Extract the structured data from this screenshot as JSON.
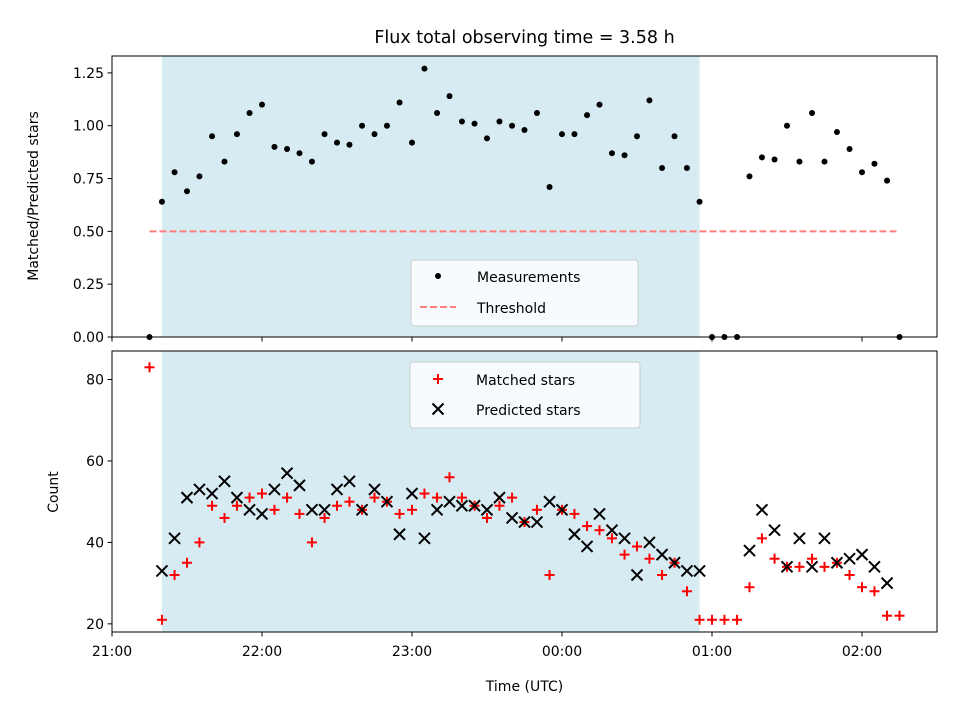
{
  "chart_data": {
    "type": "scatter",
    "title": "Flux total observing time = 3.58 h",
    "xlabel": "Time (UTC)",
    "x_ticks": [
      {
        "h": 0,
        "label": "21:00"
      },
      {
        "h": 1,
        "label": "22:00"
      },
      {
        "h": 2,
        "label": "23:00"
      },
      {
        "h": 3,
        "label": "00:00"
      },
      {
        "h": 4,
        "label": "01:00"
      },
      {
        "h": 5,
        "label": "02:00"
      }
    ],
    "xlim_hours_after_21": [
      0,
      5.5
    ],
    "shaded_span_hours_after_21": [
      0.333,
      3.917
    ],
    "colors": {
      "shade": "#add8e6",
      "measurement": "#000000",
      "threshold": "#ff7f7f",
      "matched": "#ff0000",
      "predicted": "#000000"
    },
    "top_panel": {
      "ylabel": "Matched/Predicted stars",
      "ylim": [
        0,
        1.33
      ],
      "y_ticks": [
        0.0,
        0.25,
        0.5,
        0.75,
        1.0,
        1.25
      ],
      "y_tick_labels": [
        "0.00",
        "0.25",
        "0.50",
        "0.75",
        "1.00",
        "1.25"
      ],
      "threshold": {
        "name": "Threshold",
        "value": 0.5,
        "x_range": [
          0.25,
          5.25
        ]
      },
      "legend": [
        "Measurements",
        "Threshold"
      ],
      "legend_position": "lower-center",
      "measurements": {
        "name": "Measurements",
        "x": [
          0.25,
          0.333,
          0.417,
          0.5,
          0.583,
          0.667,
          0.75,
          0.833,
          0.917,
          1.0,
          1.083,
          1.167,
          1.25,
          1.333,
          1.417,
          1.5,
          1.583,
          1.667,
          1.75,
          1.833,
          1.917,
          2.0,
          2.083,
          2.167,
          2.25,
          2.333,
          2.417,
          2.5,
          2.583,
          2.667,
          2.75,
          2.833,
          2.917,
          3.0,
          3.083,
          3.167,
          3.25,
          3.333,
          3.417,
          3.5,
          3.583,
          3.667,
          3.75,
          3.833,
          3.917,
          4.0,
          4.083,
          4.167,
          4.25,
          4.333,
          4.417,
          4.5,
          4.583,
          4.667,
          4.75,
          4.833,
          4.917,
          5.0,
          5.083,
          5.167,
          5.25
        ],
        "y": [
          0.0,
          0.64,
          0.78,
          0.69,
          0.76,
          0.95,
          0.83,
          0.96,
          1.06,
          1.1,
          0.9,
          0.89,
          0.87,
          0.83,
          0.96,
          0.92,
          0.91,
          1.0,
          0.96,
          1.0,
          1.11,
          0.92,
          1.27,
          1.06,
          1.14,
          1.02,
          1.01,
          0.94,
          1.02,
          1.0,
          0.98,
          1.06,
          0.71,
          0.96,
          0.96,
          1.05,
          1.1,
          0.87,
          0.86,
          0.95,
          1.12,
          0.8,
          0.95,
          0.8,
          0.64,
          0.0,
          0.0,
          0.0,
          0.76,
          0.85,
          0.84,
          1.0,
          0.83,
          1.06,
          0.83,
          0.97,
          0.89,
          0.78,
          0.82,
          0.74,
          0.0
        ]
      }
    },
    "bottom_panel": {
      "ylabel": "Count",
      "ylim": [
        18,
        87
      ],
      "y_ticks": [
        20,
        40,
        60,
        80
      ],
      "y_tick_labels": [
        "20",
        "40",
        "60",
        "80"
      ],
      "legend": [
        "Matched stars",
        "Predicted stars"
      ],
      "legend_position": "upper-center",
      "series": [
        {
          "name": "Matched stars",
          "marker": "plus",
          "x": [
            0.25,
            0.333,
            0.417,
            0.5,
            0.583,
            0.667,
            0.75,
            0.833,
            0.917,
            1.0,
            1.083,
            1.167,
            1.25,
            1.333,
            1.417,
            1.5,
            1.583,
            1.667,
            1.75,
            1.833,
            1.917,
            2.0,
            2.083,
            2.167,
            2.25,
            2.333,
            2.417,
            2.5,
            2.583,
            2.667,
            2.75,
            2.833,
            2.917,
            3.0,
            3.083,
            3.167,
            3.25,
            3.333,
            3.417,
            3.5,
            3.583,
            3.667,
            3.75,
            3.833,
            3.917,
            4.0,
            4.083,
            4.167,
            4.25,
            4.333,
            4.417,
            4.5,
            4.583,
            4.667,
            4.75,
            4.833,
            4.917,
            5.0,
            5.083,
            5.167,
            5.25
          ],
          "y": [
            83,
            21,
            32,
            35,
            40,
            49,
            46,
            49,
            51,
            52,
            48,
            51,
            47,
            40,
            46,
            49,
            50,
            48,
            51,
            50,
            47,
            48,
            52,
            51,
            56,
            51,
            49,
            46,
            49,
            51,
            45,
            48,
            32,
            48,
            47,
            44,
            43,
            41,
            37,
            39,
            36,
            32,
            35,
            28,
            21,
            21,
            21,
            21,
            29,
            41,
            36,
            34,
            34,
            36,
            34,
            35,
            32,
            29,
            28,
            22,
            22
          ]
        },
        {
          "name": "Predicted stars",
          "marker": "x",
          "x": [
            0.333,
            0.417,
            0.5,
            0.583,
            0.667,
            0.75,
            0.833,
            0.917,
            1.0,
            1.083,
            1.167,
            1.25,
            1.333,
            1.417,
            1.5,
            1.583,
            1.667,
            1.75,
            1.833,
            1.917,
            2.0,
            2.083,
            2.167,
            2.25,
            2.333,
            2.417,
            2.5,
            2.583,
            2.667,
            2.75,
            2.833,
            2.917,
            3.0,
            3.083,
            3.167,
            3.25,
            3.333,
            3.417,
            3.5,
            3.583,
            3.667,
            3.75,
            3.833,
            3.917,
            4.25,
            4.333,
            4.417,
            4.5,
            4.583,
            4.667,
            4.75,
            4.833,
            4.917,
            5.0,
            5.083,
            5.167
          ],
          "y": [
            33,
            41,
            51,
            53,
            52,
            55,
            51,
            48,
            47,
            53,
            57,
            54,
            48,
            48,
            53,
            55,
            48,
            53,
            50,
            42,
            52,
            41,
            48,
            50,
            49,
            49,
            48,
            51,
            46,
            45,
            45,
            50,
            48,
            42,
            39,
            47,
            43,
            41,
            32,
            40,
            37,
            35,
            33,
            33,
            38,
            48,
            43,
            34,
            41,
            34,
            41,
            35,
            36,
            37,
            34,
            30
          ]
        }
      ]
    }
  }
}
